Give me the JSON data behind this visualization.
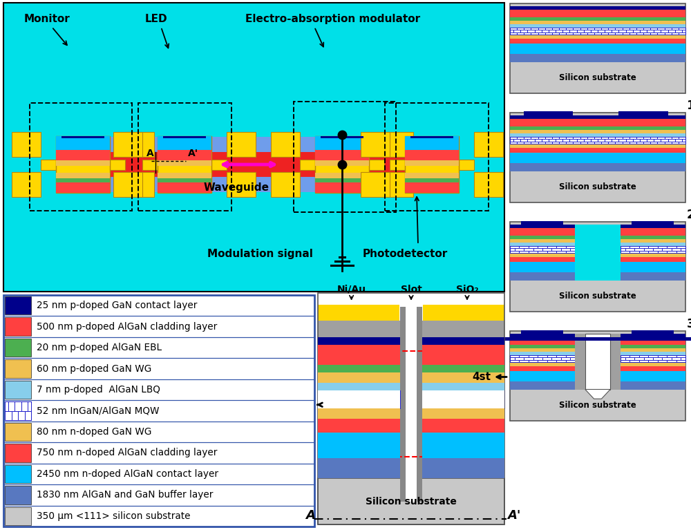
{
  "legend_entries": [
    {
      "color": "#00008B",
      "label": "25 nm p-doped GaN contact layer"
    },
    {
      "color": "#FF4040",
      "label": "500 nm p-doped AlGaN cladding layer"
    },
    {
      "color": "#4CAF50",
      "label": "20 nm p-doped AlGaN EBL"
    },
    {
      "color": "#F0C050",
      "label": "60 nm p-doped GaN WG"
    },
    {
      "color": "#87CEEB",
      "label": "7 nm p-doped  AlGaN LBQ"
    },
    {
      "color": "mqw",
      "label": "52 nm InGaN/AlGaN MQW"
    },
    {
      "color": "#F0C050",
      "label": "80 nm n-doped GaN WG"
    },
    {
      "color": "#FF4040",
      "label": "750 nm n-doped AlGaN cladding layer"
    },
    {
      "color": "#00BFFF",
      "label": "2450 nm n-doped AlGaN contact layer"
    },
    {
      "color": "#5878C0",
      "label": "1830 nm AlGaN and GaN buffer layer"
    },
    {
      "color": "#C8C8C8",
      "label": "350 μm <111> silicon substrate"
    }
  ],
  "cyan_bg": "#00E0E8",
  "yellow": "#FFD700",
  "dark_yellow": "#C8A800",
  "p_gan_contact": "#00008B",
  "p_algan_cladding": "#FF4040",
  "p_algan_ebl": "#4CAF50",
  "p_gan_wg": "#F0C050",
  "p_algan_lbq": "#87CEEB",
  "n_gan_wg": "#F0C050",
  "n_algan_cladding": "#FF4040",
  "n_algan_contact": "#00BFFF",
  "buffer_col": "#5878C0",
  "silicon_col": "#C8C8C8",
  "mqw_bg": "#FFFFFF",
  "mqw_border": "#2222CC",
  "gray_metal": "#888888",
  "sio2_col": "#A0A0A0"
}
